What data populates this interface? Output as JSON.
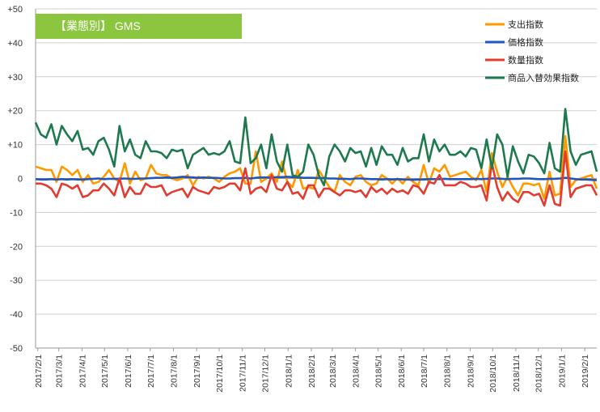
{
  "colors": {
    "title_bg": "#8cc63f",
    "grid": "#d0d0d0",
    "axis": "#9a9a9a"
  },
  "chart_data": {
    "type": "line",
    "title": "【業態別】 GMS",
    "xlabel": "",
    "ylabel": "",
    "ylim": [
      -50,
      50
    ],
    "yticks": [
      50,
      40,
      30,
      20,
      10,
      0,
      -10,
      -20,
      -30,
      -40,
      -50
    ],
    "ytick_labels": [
      "+50",
      "+40",
      "+30",
      "+20",
      "+10",
      "0",
      "-10",
      "-20",
      "-30",
      "-40",
      "-50"
    ],
    "x_range": [
      "2017-01-29",
      "2019-02-17"
    ],
    "x_tick_labels": [
      "2017/2/1",
      "2017/3/1",
      "2017/4/1",
      "2017/5/1",
      "2017/6/1",
      "2017/7/1",
      "2017/8/1",
      "2017/9/1",
      "2017/10/1",
      "2017/11/1",
      "2017/12/1",
      "2018/1/1",
      "2018/2/1",
      "2018/3/1",
      "2018/4/1",
      "2018/5/1",
      "2018/6/1",
      "2018/7/1",
      "2018/8/1",
      "2018/9/1",
      "2018/10/1",
      "2018/11/1",
      "2018/12/1",
      "2019/1/1",
      "2019/2/1"
    ],
    "x": [
      "2017-01-29",
      "2017-02-05",
      "2017-02-12",
      "2017-02-19",
      "2017-02-26",
      "2017-03-05",
      "2017-03-12",
      "2017-03-19",
      "2017-03-26",
      "2017-04-02",
      "2017-04-09",
      "2017-04-16",
      "2017-04-23",
      "2017-04-30",
      "2017-05-07",
      "2017-05-14",
      "2017-05-21",
      "2017-05-28",
      "2017-06-04",
      "2017-06-11",
      "2017-06-18",
      "2017-06-25",
      "2017-07-02",
      "2017-07-09",
      "2017-07-16",
      "2017-07-23",
      "2017-07-30",
      "2017-08-06",
      "2017-08-13",
      "2017-08-20",
      "2017-08-27",
      "2017-09-03",
      "2017-09-10",
      "2017-09-17",
      "2017-09-24",
      "2017-10-01",
      "2017-10-08",
      "2017-10-15",
      "2017-10-22",
      "2017-10-29",
      "2017-11-05",
      "2017-11-12",
      "2017-11-19",
      "2017-11-26",
      "2017-12-03",
      "2017-12-10",
      "2017-12-17",
      "2017-12-24",
      "2017-12-31",
      "2018-01-07",
      "2018-01-14",
      "2018-01-21",
      "2018-01-28",
      "2018-02-04",
      "2018-02-11",
      "2018-02-18",
      "2018-02-25",
      "2018-03-04",
      "2018-03-11",
      "2018-03-18",
      "2018-03-25",
      "2018-04-01",
      "2018-04-08",
      "2018-04-15",
      "2018-04-22",
      "2018-04-29",
      "2018-05-06",
      "2018-05-13",
      "2018-05-20",
      "2018-05-27",
      "2018-06-03",
      "2018-06-10",
      "2018-06-17",
      "2018-06-24",
      "2018-07-01",
      "2018-07-08",
      "2018-07-15",
      "2018-07-22",
      "2018-07-29",
      "2018-08-05",
      "2018-08-12",
      "2018-08-19",
      "2018-08-26",
      "2018-09-02",
      "2018-09-09",
      "2018-09-16",
      "2018-09-23",
      "2018-09-30",
      "2018-10-07",
      "2018-10-14",
      "2018-10-21",
      "2018-10-28",
      "2018-11-04",
      "2018-11-11",
      "2018-11-18",
      "2018-11-25",
      "2018-12-02",
      "2018-12-09",
      "2018-12-16",
      "2018-12-23",
      "2018-12-30",
      "2019-01-06",
      "2019-01-13",
      "2019-01-20",
      "2019-01-27",
      "2019-02-03",
      "2019-02-10",
      "2019-02-17"
    ],
    "series": [
      {
        "name": "支出指数",
        "color": "#ff9900",
        "values": [
          3.5,
          3.0,
          2.5,
          2.5,
          -1.0,
          3.5,
          2.5,
          1.0,
          2.5,
          -1.0,
          1.0,
          -1.5,
          -1.0,
          0.5,
          2.5,
          0.0,
          -1.0,
          4.5,
          -1.5,
          2.0,
          -0.5,
          0.0,
          4.0,
          1.5,
          1.0,
          1.0,
          0.0,
          -0.5,
          0.0,
          1.0,
          -2.0,
          0.5,
          0.0,
          0.5,
          0.0,
          -1.0,
          0.5,
          1.5,
          2.0,
          3.0,
          -1.5,
          -1.5,
          8.0,
          -1.0,
          0.0,
          1.5,
          -1.0,
          5.0,
          -1.0,
          -2.5,
          2.5,
          -3.0,
          -2.5,
          -3.0,
          2.5,
          0.0,
          -2.5,
          -4.0,
          1.0,
          -1.0,
          -2.0,
          0.5,
          1.0,
          -1.0,
          -2.0,
          -1.5,
          1.0,
          0.0,
          -1.5,
          0.0,
          -1.5,
          0.5,
          -1.0,
          -2.0,
          4.0,
          -1.5,
          3.0,
          2.0,
          4.0,
          0.5,
          1.0,
          1.5,
          2.0,
          0.5,
          -0.5,
          2.5,
          -4.0,
          7.5,
          2.0,
          -2.5,
          0.5,
          -2.5,
          -5.0,
          -1.5,
          -1.5,
          -2.0,
          -1.5,
          -6.0,
          2.0,
          -5.0,
          -4.5,
          12.5,
          -2.5,
          -0.5,
          0.0,
          0.5,
          1.0,
          -3.0
        ]
      },
      {
        "name": "価格指数",
        "color": "#2255bb",
        "values": [
          -0.2,
          -0.3,
          -0.3,
          -0.2,
          -0.3,
          -0.2,
          -0.3,
          -0.2,
          -0.3,
          -0.3,
          -0.2,
          -0.1,
          0.0,
          -0.2,
          -0.1,
          -0.1,
          -0.1,
          0.0,
          -0.1,
          -0.1,
          0.0,
          0.0,
          0.1,
          0.2,
          0.2,
          0.3,
          0.2,
          0.3,
          0.5,
          0.4,
          0.3,
          0.2,
          0.3,
          0.2,
          0.2,
          0.1,
          0.0,
          0.0,
          0.1,
          0.1,
          0.2,
          0.0,
          0.2,
          0.3,
          0.3,
          0.2,
          0.4,
          0.4,
          0.5,
          0.4,
          0.3,
          0.2,
          0.2,
          0.2,
          0.1,
          0.1,
          0.0,
          0.0,
          -0.1,
          -0.1,
          -0.2,
          0.0,
          0.0,
          -0.1,
          -0.2,
          -0.2,
          -0.3,
          -0.2,
          -0.3,
          -0.2,
          -0.3,
          -0.3,
          -0.4,
          -0.3,
          -0.3,
          -0.2,
          -0.2,
          -0.2,
          -0.1,
          -0.2,
          -0.2,
          -0.2,
          -0.2,
          -0.2,
          -0.1,
          -0.2,
          -0.1,
          0.0,
          0.0,
          -0.1,
          -0.2,
          -0.1,
          -0.1,
          0.0,
          0.0,
          -0.1,
          -0.2,
          -0.2,
          -0.1,
          -0.1,
          0.0,
          0.2,
          0.0,
          -0.2,
          -0.3,
          -0.3,
          -0.4,
          -0.5
        ]
      },
      {
        "name": "数量指数",
        "color": "#e03c31",
        "values": [
          -1.5,
          -1.5,
          -2.0,
          -3.0,
          -5.5,
          -1.5,
          -2.0,
          -3.0,
          -2.0,
          -5.5,
          -5.0,
          -3.5,
          -3.5,
          -1.5,
          -3.0,
          -5.0,
          0.0,
          -5.5,
          -2.5,
          -4.5,
          -4.5,
          -1.5,
          -2.5,
          -2.5,
          -2.0,
          -5.0,
          -4.0,
          -3.5,
          -3.0,
          -5.5,
          -2.5,
          -3.5,
          -4.0,
          -4.5,
          -2.5,
          -3.0,
          -2.5,
          -1.5,
          -1.5,
          -3.5,
          3.0,
          -4.5,
          -3.0,
          -2.5,
          -4.0,
          1.0,
          -3.0,
          -3.5,
          -1.0,
          -4.5,
          -4.0,
          -6.0,
          -2.0,
          -2.0,
          -5.5,
          -3.0,
          -3.0,
          -4.0,
          -5.0,
          -3.5,
          -3.5,
          -4.0,
          -3.5,
          -5.5,
          -2.5,
          -4.0,
          -3.0,
          -4.5,
          -3.0,
          -4.0,
          -3.5,
          -4.5,
          -2.0,
          -2.5,
          -4.5,
          -1.0,
          -1.5,
          1.0,
          -2.0,
          -2.0,
          -2.0,
          -1.0,
          -1.5,
          -2.5,
          -2.5,
          -2.0,
          -6.5,
          4.5,
          -2.5,
          -6.5,
          -4.0,
          -6.0,
          -7.0,
          -4.0,
          -4.0,
          -5.0,
          -4.5,
          -8.0,
          -2.0,
          -7.5,
          -8.0,
          8.0,
          -5.5,
          -3.0,
          -2.5,
          -2.0,
          -2.0,
          -5.0
        ]
      },
      {
        "name": "商品入替効果指数",
        "color": "#1e7a4e",
        "values": [
          16.5,
          13.0,
          12.0,
          16.0,
          10.0,
          15.5,
          13.0,
          11.0,
          14.0,
          8.5,
          9.0,
          7.0,
          11.0,
          12.0,
          8.5,
          3.5,
          15.5,
          8.0,
          11.5,
          7.0,
          6.0,
          11.0,
          8.0,
          8.0,
          7.5,
          6.0,
          8.5,
          8.0,
          8.5,
          3.0,
          7.0,
          8.0,
          9.0,
          7.0,
          7.5,
          7.0,
          8.0,
          11.0,
          5.0,
          4.5,
          18.0,
          4.5,
          6.0,
          10.0,
          3.0,
          13.0,
          5.0,
          2.0,
          10.0,
          1.0,
          0.5,
          2.0,
          10.0,
          7.0,
          1.0,
          -2.0,
          6.5,
          10.0,
          8.0,
          5.0,
          9.0,
          7.5,
          8.0,
          3.5,
          9.0,
          4.0,
          9.5,
          7.0,
          7.0,
          4.0,
          9.0,
          5.0,
          6.0,
          6.0,
          13.0,
          5.0,
          11.5,
          8.0,
          10.0,
          7.0,
          7.0,
          8.0,
          6.5,
          9.0,
          8.5,
          3.0,
          11.5,
          3.0,
          13.0,
          10.0,
          0.5,
          9.5,
          5.0,
          1.5,
          7.0,
          6.5,
          4.5,
          1.5,
          10.5,
          3.0,
          2.0,
          20.5,
          8.0,
          4.0,
          7.0,
          7.5,
          8.0,
          2.0
        ]
      }
    ],
    "legend_position": "top-right",
    "grid": true
  }
}
